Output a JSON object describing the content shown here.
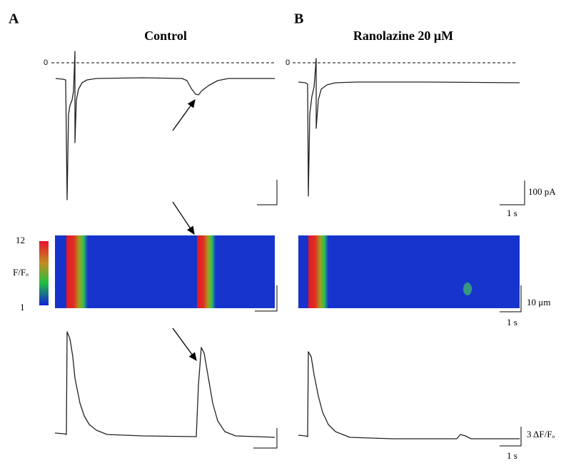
{
  "panels": [
    {
      "label": "A",
      "title": "Control",
      "zero_label": "0"
    },
    {
      "label": "B",
      "title": "Ranolazine 20 μM",
      "zero_label": "0"
    }
  ],
  "colorbar": {
    "max": "12",
    "label": "F/Fₒ",
    "min": "1"
  },
  "scale_bars": {
    "current": "100 pA",
    "time_current": "1 s",
    "distance": "10 μm",
    "time_linescan": "1 s",
    "fluorescence": "3 ΔF/Fₒ",
    "time_fluorescence": "1 s"
  }
}
